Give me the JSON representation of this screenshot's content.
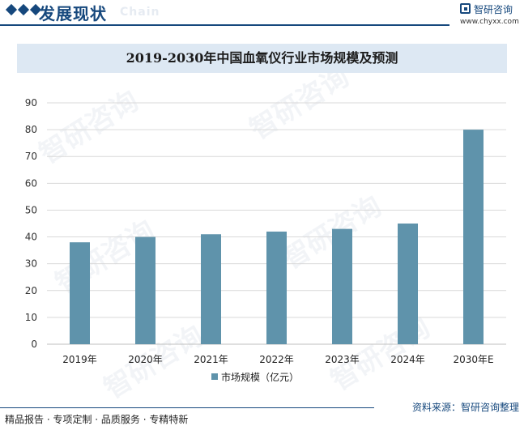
{
  "header": {
    "title": "发展现状",
    "title_en": "Chain",
    "brand_name": "智研咨询",
    "brand_url": "www.chyxx.com"
  },
  "chart_title": "2019-2030年中国血氧仪行业市场规模及预测",
  "colors": {
    "bar": "#5f93ab",
    "grid": "#d9d9d9",
    "accent": "#16487d"
  },
  "chart_data": {
    "type": "bar",
    "title": "2019-2030年中国血氧仪行业市场规模及预测",
    "categories": [
      "2019年",
      "2020年",
      "2021年",
      "2022年",
      "2023年",
      "2024年",
      "2030年E"
    ],
    "series": [
      {
        "name": "市场规模（亿元）",
        "values": [
          38,
          40,
          41,
          42,
          43,
          45,
          80
        ]
      }
    ],
    "y_ticks": [
      0,
      10,
      20,
      30,
      40,
      50,
      60,
      70,
      80,
      90
    ],
    "ylim": [
      0,
      90
    ],
    "grid": true,
    "legend": "bottom"
  },
  "footer": {
    "left": "精品报告 · 专项定制 · 品质服务 · 专精特新",
    "source": "资料来源：智研咨询整理"
  },
  "watermark": "智研咨询"
}
